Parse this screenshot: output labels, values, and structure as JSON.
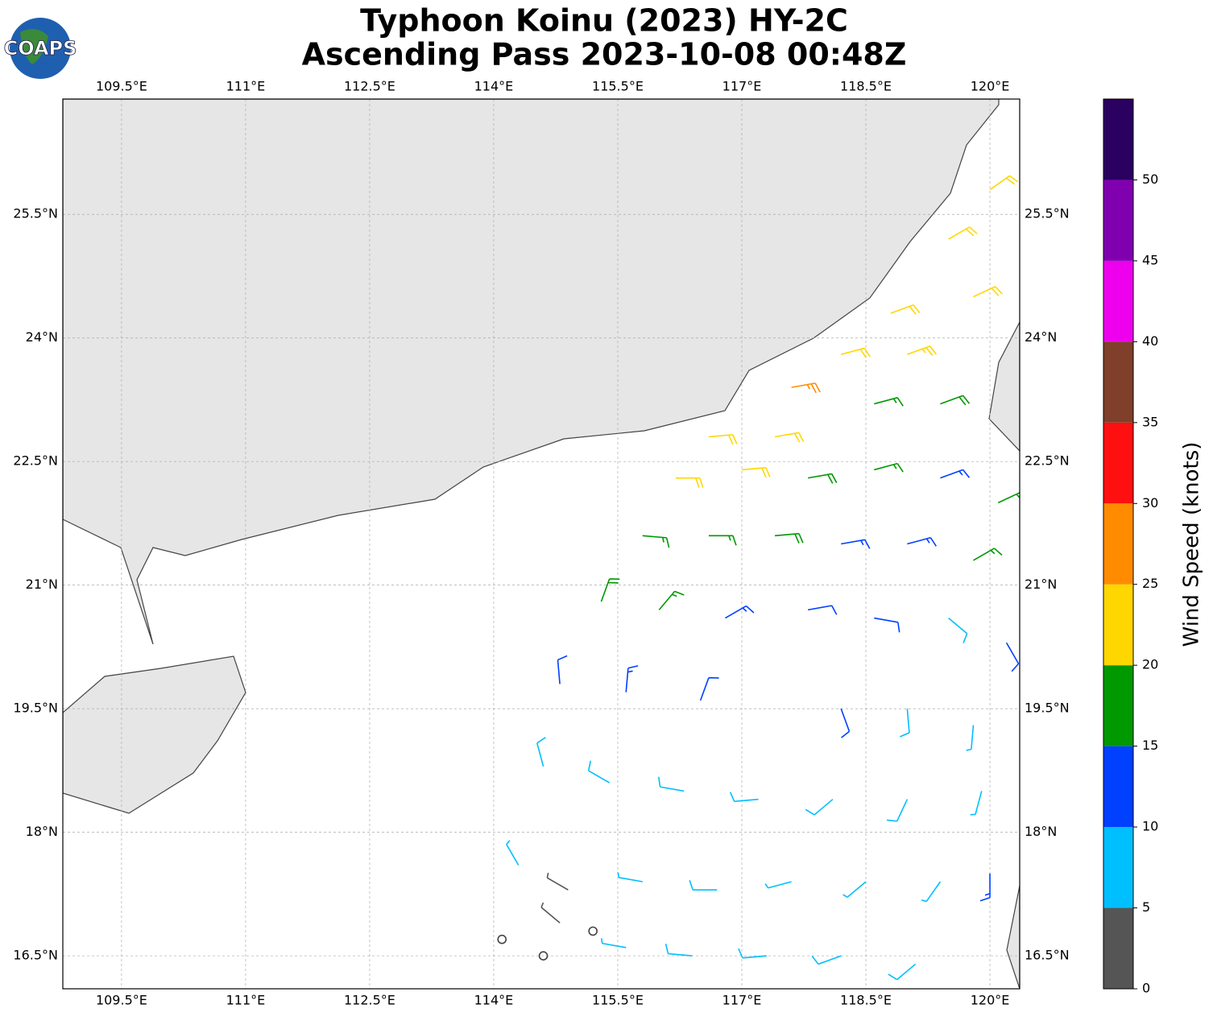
{
  "header": {
    "title_line1": "Typhoon Koinu (2023) HY-2C",
    "title_line2": "Ascending Pass 2023-10-08 00:48Z",
    "logo_text": "COAPS"
  },
  "map": {
    "xlim": [
      108.79,
      120.36
    ],
    "ylim": [
      16.1,
      26.9
    ],
    "lon_ticks": [
      {
        "value": 109.5,
        "label": "109.5°E"
      },
      {
        "value": 111,
        "label": "111°E"
      },
      {
        "value": 112.5,
        "label": "112.5°E"
      },
      {
        "value": 114,
        "label": "114°E"
      },
      {
        "value": 115.5,
        "label": "115.5°E"
      },
      {
        "value": 117,
        "label": "117°E"
      },
      {
        "value": 118.5,
        "label": "118.5°E"
      },
      {
        "value": 120,
        "label": "120°E"
      }
    ],
    "lat_ticks": [
      {
        "value": 16.5,
        "label": "16.5°N"
      },
      {
        "value": 18,
        "label": "18°N"
      },
      {
        "value": 19.5,
        "label": "19.5°N"
      },
      {
        "value": 21,
        "label": "21°N"
      },
      {
        "value": 22.5,
        "label": "22.5°N"
      },
      {
        "value": 24,
        "label": "24°N"
      },
      {
        "value": 25.5,
        "label": "25.5°N"
      }
    ],
    "barbs": [
      [
        118.2,
        23.8,
        22,
        75
      ],
      [
        119.0,
        23.8,
        23,
        70
      ],
      [
        119.8,
        24.5,
        22,
        65
      ],
      [
        119.5,
        25.2,
        21,
        60
      ],
      [
        120.0,
        25.8,
        22,
        55
      ],
      [
        118.8,
        24.3,
        22,
        70
      ],
      [
        117.6,
        23.4,
        27,
        80
      ],
      [
        118.6,
        23.2,
        17,
        75
      ],
      [
        119.4,
        23.2,
        18,
        70
      ],
      [
        116.6,
        22.8,
        22,
        85
      ],
      [
        117.4,
        22.8,
        21,
        80
      ],
      [
        116.2,
        22.3,
        22,
        90
      ],
      [
        117.0,
        22.4,
        20,
        85
      ],
      [
        117.8,
        22.3,
        19,
        80
      ],
      [
        118.6,
        22.4,
        16,
        75
      ],
      [
        119.4,
        22.3,
        14,
        70
      ],
      [
        120.1,
        22.0,
        17,
        65
      ],
      [
        115.8,
        21.6,
        17,
        95
      ],
      [
        116.6,
        21.6,
        16,
        90
      ],
      [
        117.4,
        21.6,
        18,
        85
      ],
      [
        118.2,
        21.5,
        14,
        80
      ],
      [
        119.0,
        21.5,
        13,
        75
      ],
      [
        119.8,
        21.3,
        16,
        60
      ],
      [
        115.3,
        20.8,
        18,
        20
      ],
      [
        116.0,
        20.7,
        16,
        40
      ],
      [
        116.8,
        20.6,
        13,
        60
      ],
      [
        117.8,
        20.7,
        12,
        80
      ],
      [
        118.6,
        20.6,
        11,
        100
      ],
      [
        119.5,
        20.6,
        9,
        130
      ],
      [
        120.2,
        20.3,
        12,
        150
      ],
      [
        114.8,
        19.8,
        12,
        355
      ],
      [
        115.6,
        19.7,
        13,
        5
      ],
      [
        116.5,
        19.6,
        11,
        20
      ],
      [
        118.2,
        19.5,
        12,
        160
      ],
      [
        119.0,
        19.5,
        8,
        175
      ],
      [
        119.8,
        19.3,
        7,
        185
      ],
      [
        114.6,
        18.8,
        8,
        345
      ],
      [
        115.4,
        18.6,
        9,
        300
      ],
      [
        116.3,
        18.5,
        8,
        280
      ],
      [
        117.2,
        18.4,
        8,
        265
      ],
      [
        118.1,
        18.4,
        8,
        230
      ],
      [
        119.0,
        18.4,
        8,
        205
      ],
      [
        119.9,
        18.5,
        7,
        195
      ],
      [
        114.3,
        17.6,
        6,
        330
      ],
      [
        114.9,
        17.3,
        4,
        300
      ],
      [
        115.8,
        17.4,
        7,
        280
      ],
      [
        116.7,
        17.3,
        8,
        270
      ],
      [
        117.6,
        17.4,
        7,
        255
      ],
      [
        118.5,
        17.4,
        7,
        230
      ],
      [
        119.4,
        17.4,
        7,
        215
      ],
      [
        120.0,
        17.5,
        13,
        180
      ],
      [
        114.1,
        16.7,
        1,
        0
      ],
      [
        114.6,
        16.5,
        1,
        0
      ],
      [
        115.2,
        16.8,
        1,
        0
      ],
      [
        115.6,
        16.6,
        7,
        280
      ],
      [
        116.4,
        16.5,
        8,
        275
      ],
      [
        117.3,
        16.5,
        8,
        265
      ],
      [
        118.2,
        16.5,
        8,
        250
      ],
      [
        119.1,
        16.4,
        8,
        230
      ],
      [
        114.8,
        16.9,
        4,
        310
      ]
    ]
  },
  "colorbar": {
    "label": "Wind Speed (knots)",
    "bins": [
      0,
      5,
      10,
      15,
      20,
      25,
      30,
      35,
      40,
      45,
      50,
      55
    ],
    "colors": [
      "#555555",
      "#00bfff",
      "#0040ff",
      "#009900",
      "#ffd700",
      "#ff8c00",
      "#ff1010",
      "#7f3f2a",
      "#ee00ee",
      "#8000b0",
      "#2a0060"
    ],
    "ticks": [
      0,
      5,
      10,
      15,
      20,
      25,
      30,
      35,
      40,
      45,
      50
    ]
  }
}
